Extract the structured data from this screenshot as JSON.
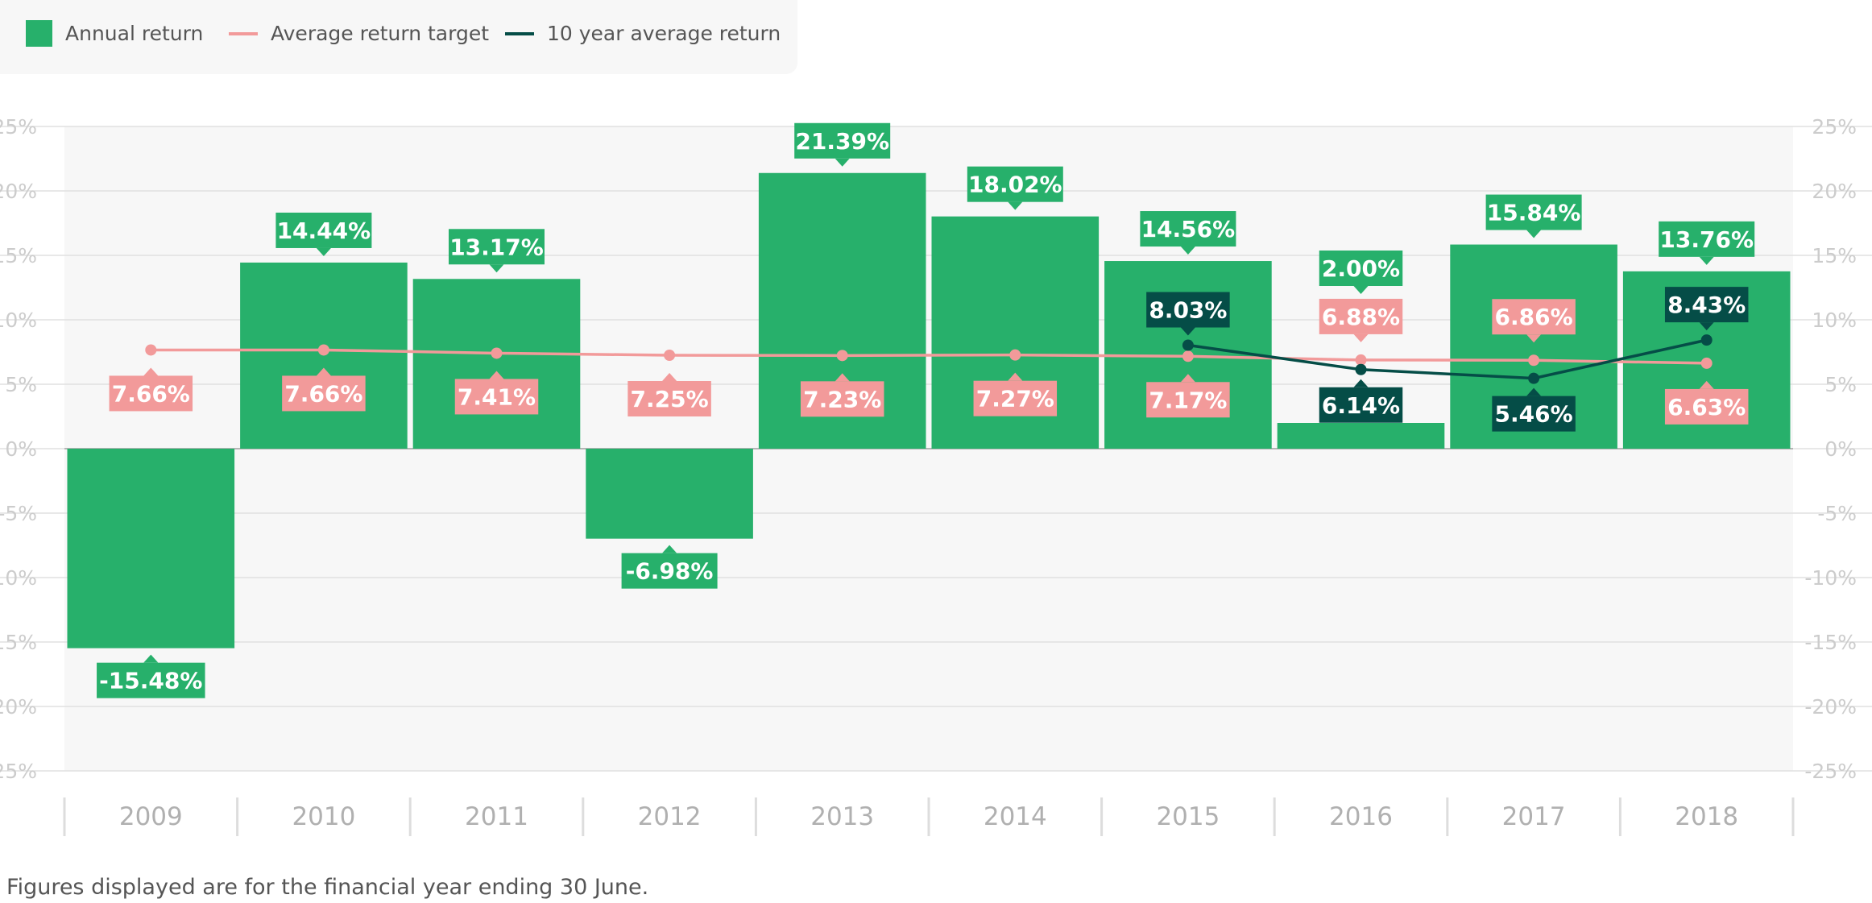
{
  "legend": {
    "annual": "Annual return",
    "target": "Average return target",
    "avg10": "10 year average return"
  },
  "footnote": "Figures displayed are for the financial year ending 30 June.",
  "colors": {
    "annual": "#27b06b",
    "target": "#f29a9a",
    "avg10": "#054d47",
    "plot_bg": "#f7f7f7",
    "grid": "#e0e0e0",
    "tick": "#c4c4c4"
  },
  "chart_data": {
    "type": "bar",
    "categories": [
      "2009",
      "2010",
      "2011",
      "2012",
      "2013",
      "2014",
      "2015",
      "2016",
      "2017",
      "2018"
    ],
    "ylim": [
      -25,
      25
    ],
    "yticks": [
      25,
      20,
      15,
      10,
      5,
      0,
      -5,
      -10,
      -15,
      -20,
      -25
    ],
    "ytick_labels": [
      "25%",
      "20%",
      "15%",
      "10%",
      "5%",
      "0%",
      "-5%",
      "-10%",
      "-15%",
      "-20%",
      "-25%"
    ],
    "grid": true,
    "legend_position": "top-left",
    "series": [
      {
        "name": "Annual return",
        "type": "bar",
        "values": [
          -15.48,
          14.44,
          13.17,
          -6.98,
          21.39,
          18.02,
          14.56,
          2.0,
          15.84,
          13.76
        ],
        "labels": [
          "-15.48%",
          "14.44%",
          "13.17%",
          "-6.98%",
          "21.39%",
          "18.02%",
          "14.56%",
          "2.00%",
          "15.84%",
          "13.76%"
        ]
      },
      {
        "name": "Average return target",
        "type": "line",
        "values": [
          7.66,
          7.66,
          7.41,
          7.25,
          7.23,
          7.27,
          7.17,
          6.88,
          6.86,
          6.63
        ],
        "labels": [
          "7.66%",
          "7.66%",
          "7.41%",
          "7.25%",
          "7.23%",
          "7.27%",
          "7.17%",
          "6.88%",
          "6.86%",
          "6.63%"
        ]
      },
      {
        "name": "10 year average return",
        "type": "line",
        "values": [
          null,
          null,
          null,
          null,
          null,
          null,
          8.03,
          6.14,
          5.46,
          8.43
        ],
        "labels": [
          "",
          "",
          "",
          "",
          "",
          "",
          "8.03%",
          "6.14%",
          "5.46%",
          "8.43%"
        ]
      }
    ]
  }
}
